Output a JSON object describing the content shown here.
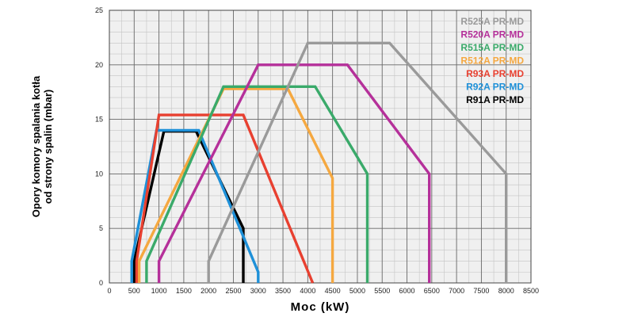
{
  "chart_data": {
    "type": "line",
    "xlabel": "Moc (kW)",
    "ylabel_lines": [
      "Opory komory spalania kotła",
      "od strony spalin (mbar)"
    ],
    "xlim": [
      0,
      8500
    ],
    "ylim": [
      0,
      25
    ],
    "x_ticks": [
      0,
      500,
      1000,
      1500,
      2000,
      2500,
      3000,
      3500,
      4000,
      4500,
      5000,
      5500,
      6000,
      6500,
      7000,
      7500,
      8000,
      8500
    ],
    "y_ticks": [
      0,
      5,
      10,
      15,
      20,
      25
    ],
    "grid": true,
    "legend_position": "top-right",
    "series": [
      {
        "name": "R525A PR-MD",
        "color": "#9a9a9a",
        "points": [
          [
            2000,
            0
          ],
          [
            2000,
            2
          ],
          [
            4000,
            22
          ],
          [
            5650,
            22
          ],
          [
            8000,
            10
          ],
          [
            8000,
            0
          ]
        ]
      },
      {
        "name": "R520A PR-MD",
        "color": "#b5309a",
        "points": [
          [
            1000,
            0
          ],
          [
            1000,
            2
          ],
          [
            3000,
            20
          ],
          [
            4800,
            20
          ],
          [
            6450,
            10
          ],
          [
            6450,
            0
          ]
        ]
      },
      {
        "name": "R515A PR-MD",
        "color": "#3aaa6a",
        "points": [
          [
            750,
            0
          ],
          [
            750,
            2
          ],
          [
            2300,
            18
          ],
          [
            4150,
            18
          ],
          [
            5200,
            10
          ],
          [
            5200,
            0
          ]
        ]
      },
      {
        "name": "R512A PR-MD",
        "color": "#f5a840",
        "points": [
          [
            600,
            0
          ],
          [
            600,
            2
          ],
          [
            2300,
            17.8
          ],
          [
            3600,
            17.8
          ],
          [
            4500,
            9.6
          ],
          [
            4500,
            0
          ]
        ]
      },
      {
        "name": "R93A PR-MD",
        "color": "#e84030",
        "points": [
          [
            550,
            0
          ],
          [
            550,
            2
          ],
          [
            1000,
            15.4
          ],
          [
            2700,
            15.4
          ],
          [
            4100,
            0
          ]
        ]
      },
      {
        "name": "R92A PR-MD",
        "color": "#1e90d8",
        "points": [
          [
            450,
            0
          ],
          [
            450,
            2
          ],
          [
            950,
            14
          ],
          [
            1800,
            14
          ],
          [
            3000,
            1
          ],
          [
            3000,
            0
          ]
        ]
      },
      {
        "name": "R91A PR-MD",
        "color": "#000000",
        "points": [
          [
            500,
            0
          ],
          [
            500,
            2
          ],
          [
            1100,
            13.9
          ],
          [
            1750,
            13.9
          ],
          [
            2700,
            5
          ],
          [
            2700,
            0
          ]
        ]
      }
    ]
  }
}
